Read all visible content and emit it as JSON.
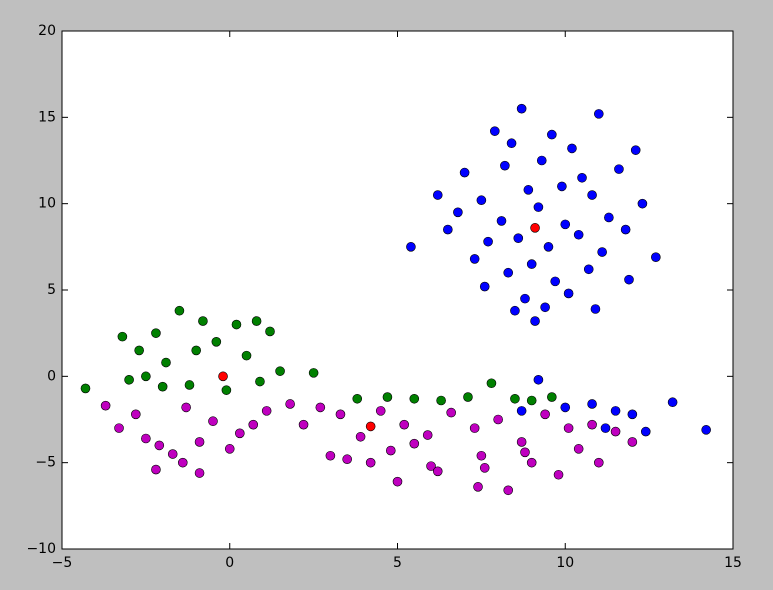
{
  "chart_data": {
    "type": "scatter",
    "xlim": [
      -5,
      15
    ],
    "ylim": [
      -10,
      20
    ],
    "xticks": [
      {
        "value": -5,
        "label": "−5"
      },
      0,
      5,
      10,
      15
    ],
    "yticks": [
      {
        "value": -10,
        "label": "−10"
      },
      {
        "value": -5,
        "label": "−5"
      },
      0,
      5,
      10,
      15,
      20
    ],
    "grid": false,
    "series": [
      {
        "color": "#0000ff",
        "x": [
          8.7,
          11.0,
          7.9,
          8.4,
          9.6,
          10.2,
          12.1,
          6.2,
          5.4,
          7.0,
          8.2,
          9.3,
          10.5,
          11.6,
          12.3,
          11.8,
          6.8,
          7.5,
          8.9,
          9.9,
          10.8,
          11.3,
          8.1,
          9.2,
          10.0,
          7.7,
          8.6,
          9.5,
          10.4,
          11.1,
          9.0,
          8.3,
          10.7,
          7.3,
          9.7,
          8.8,
          10.1,
          6.5,
          12.7,
          11.9,
          9.4,
          8.5,
          10.9,
          9.1,
          7.6,
          9.2,
          10.0,
          10.8,
          11.5,
          12.0,
          12.4,
          13.2,
          14.2,
          8.7,
          11.2
        ],
        "values": [
          15.5,
          15.2,
          14.2,
          13.5,
          14.0,
          13.2,
          13.1,
          10.5,
          7.5,
          11.8,
          12.2,
          12.5,
          11.5,
          12.0,
          10.0,
          8.5,
          9.5,
          10.2,
          10.8,
          11.0,
          10.5,
          9.2,
          9.0,
          9.8,
          8.8,
          7.8,
          8.0,
          7.5,
          8.2,
          7.2,
          6.5,
          6.0,
          6.2,
          6.8,
          5.5,
          4.5,
          4.8,
          8.5,
          6.9,
          5.6,
          4.0,
          3.8,
          3.9,
          3.2,
          5.2,
          -0.2,
          -1.8,
          -1.6,
          -2.0,
          -2.2,
          -3.2,
          -1.5,
          -3.1,
          -2.0,
          -3.0
        ]
      },
      {
        "color": "#008000",
        "x": [
          -4.3,
          -3.2,
          -2.7,
          -2.2,
          -1.5,
          -0.8,
          0.2,
          0.8,
          1.2,
          -1.9,
          -1.0,
          -0.4,
          0.5,
          1.5,
          -2.5,
          -1.2,
          -0.1,
          0.9,
          -3.0,
          -2.0,
          2.5,
          3.8,
          4.7,
          5.5,
          6.3,
          7.1,
          7.8,
          8.5,
          9.0,
          9.6
        ],
        "values": [
          -0.7,
          2.3,
          1.5,
          2.5,
          3.8,
          3.2,
          3.0,
          3.2,
          2.6,
          0.8,
          1.5,
          2.0,
          1.2,
          0.3,
          0.0,
          -0.5,
          -0.8,
          -0.3,
          -0.2,
          -0.6,
          0.2,
          -1.3,
          -1.2,
          -1.3,
          -1.4,
          -1.2,
          -0.4,
          -1.3,
          -1.4,
          -1.2
        ]
      },
      {
        "color": "#bf00bf",
        "x": [
          -3.7,
          -3.3,
          -2.8,
          -2.1,
          -1.3,
          -0.5,
          0.3,
          1.1,
          1.8,
          -2.5,
          -1.7,
          -0.9,
          0.0,
          0.7,
          -2.2,
          -0.9,
          -1.4,
          2.2,
          2.7,
          3.3,
          3.9,
          4.5,
          5.2,
          5.9,
          6.6,
          7.3,
          8.0,
          8.7,
          9.4,
          10.1,
          10.8,
          11.5,
          12.0,
          3.5,
          4.8,
          6.0,
          7.5,
          9.0,
          10.4,
          5.0,
          6.2,
          7.4,
          8.3,
          4.2,
          7.6,
          3.0,
          9.8,
          11.0,
          5.5,
          8.8
        ],
        "values": [
          -1.7,
          -3.0,
          -2.2,
          -4.0,
          -1.8,
          -2.6,
          -3.3,
          -2.0,
          -1.6,
          -3.6,
          -4.5,
          -3.8,
          -4.2,
          -2.8,
          -5.4,
          -5.6,
          -5.0,
          -2.8,
          -1.8,
          -2.2,
          -3.5,
          -2.0,
          -2.8,
          -3.4,
          -2.1,
          -3.0,
          -2.5,
          -3.8,
          -2.2,
          -3.0,
          -2.8,
          -3.2,
          -3.8,
          -4.8,
          -4.3,
          -5.2,
          -4.6,
          -5.0,
          -4.2,
          -6.1,
          -5.5,
          -6.4,
          -6.6,
          -5.0,
          -5.3,
          -4.6,
          -5.7,
          -5.0,
          -3.9,
          -4.4
        ]
      },
      {
        "color": "#ff0000",
        "x": [
          -0.2,
          4.2,
          9.1
        ],
        "values": [
          0.0,
          -2.9,
          8.6
        ]
      }
    ]
  }
}
